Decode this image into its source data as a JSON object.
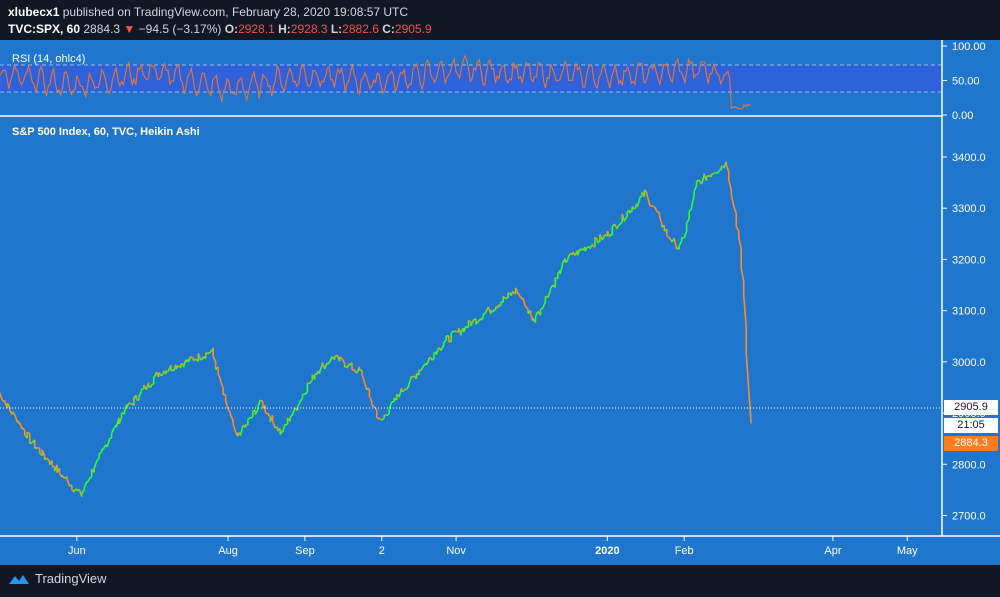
{
  "header": {
    "username": "xlubecx1",
    "published": "published on TradingView.com, February 28, 2020 19:08:57 UTC",
    "symbol": "TVC:SPX, 60",
    "last": "2884.3",
    "change": "−94.5 (−3.17%)",
    "open_label": "O:",
    "open": "2928.1",
    "high_label": "H:",
    "high": "2928.3",
    "low_label": "L:",
    "low": "2882.6",
    "close_label": "C:",
    "close": "2905.9"
  },
  "rsi_pane": {
    "label": "RSI (14, ohlc4)",
    "ticks": [
      "100.00",
      "50.00",
      "0.00"
    ]
  },
  "price_pane": {
    "label": "S&P 500 Index, 60, TVC, Heikin Ashi",
    "ref_price": "2905.9",
    "countdown": "21:05",
    "last_price": "2884.3"
  },
  "footer": {
    "brand": "TradingView"
  },
  "colors": {
    "pane_bg": "#1f76cc",
    "up": "#2eff2e",
    "down": "#ff8c28",
    "rsi_line": "#e8743b",
    "rsi_band": "#2f62da"
  },
  "chart_data": [
    {
      "type": "line",
      "title": "RSI (14, ohlc4)",
      "ylim": [
        0,
        100
      ],
      "yticks": [
        0,
        50,
        100
      ],
      "bands": [
        30,
        70
      ],
      "x": [
        "2019-05",
        "2019-06",
        "2019-07",
        "2019-08",
        "2019-09",
        "2019-10",
        "2019-11",
        "2019-12",
        "2020-01",
        "2020-02-10",
        "2020-02-20",
        "2020-02-28"
      ],
      "values": [
        58,
        42,
        64,
        36,
        58,
        48,
        66,
        60,
        57,
        66,
        52,
        12
      ]
    },
    {
      "type": "line",
      "title": "S&P 500 Index, 60, TVC, Heikin Ashi",
      "ylim": [
        2660,
        3480
      ],
      "yticks": [
        2700,
        2800,
        2900,
        3000,
        3100,
        3200,
        3300,
        3400
      ],
      "xticks": [
        "Jun",
        "Aug",
        "Sep",
        "2",
        "Nov",
        "2020",
        "Feb",
        "Apr",
        "May"
      ],
      "x": [
        "2019-05-01",
        "2019-05-15",
        "2019-06-03",
        "2019-06-20",
        "2019-07-05",
        "2019-07-26",
        "2019-08-05",
        "2019-08-15",
        "2019-08-23",
        "2019-09-06",
        "2019-09-13",
        "2019-09-24",
        "2019-10-02",
        "2019-10-10",
        "2019-10-28",
        "2019-11-12",
        "2019-11-26",
        "2019-12-03",
        "2019-12-16",
        "2020-01-02",
        "2020-01-17",
        "2020-01-27",
        "2020-01-31",
        "2020-02-07",
        "2020-02-19",
        "2020-02-24",
        "2020-02-26",
        "2020-02-28"
      ],
      "values": [
        2940,
        2840,
        2740,
        2900,
        2980,
        3020,
        2850,
        2920,
        2860,
        2980,
        3010,
        2980,
        2880,
        2940,
        3040,
        3090,
        3140,
        3080,
        3200,
        3250,
        3330,
        3240,
        3220,
        3350,
        3390,
        3225,
        3120,
        2884
      ]
    }
  ]
}
